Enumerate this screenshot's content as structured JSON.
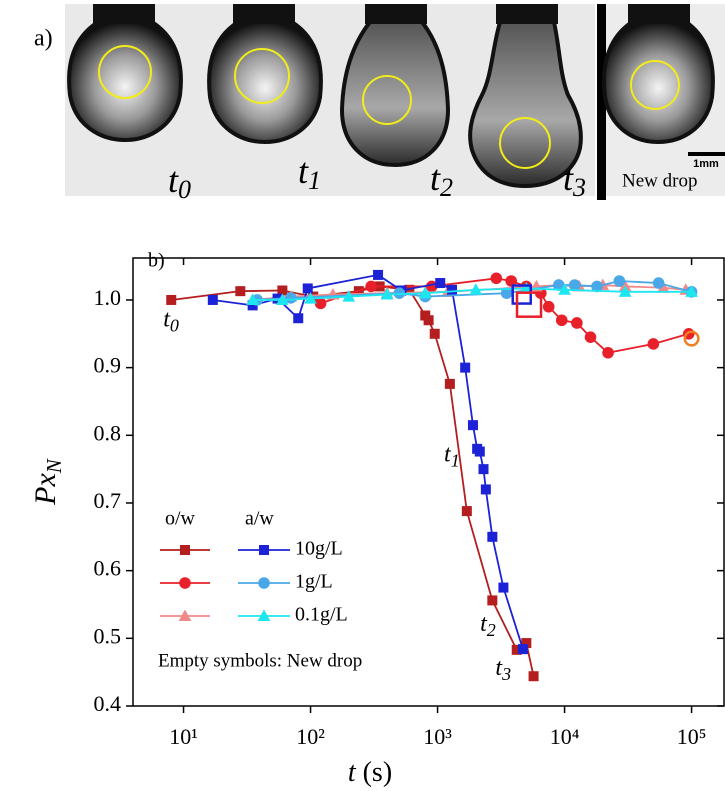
{
  "panel_a": {
    "label": "a)",
    "frames": [
      {
        "base": "t",
        "sub": "0"
      },
      {
        "base": "t",
        "sub": "1"
      },
      {
        "base": "t",
        "sub": "2"
      },
      {
        "base": "t",
        "sub": "3"
      }
    ],
    "scale_bar": "1mm",
    "new_drop": "New drop"
  },
  "chart_data": {
    "type": "line",
    "panel_label": "b)",
    "x_label": {
      "symbol": "t",
      "unit": "(s)"
    },
    "y_label": {
      "base": "Px",
      "sub": "N"
    },
    "log_x": true,
    "xlim": [
      4,
      180000
    ],
    "xticks": [
      {
        "value": 10,
        "label": "10¹"
      },
      {
        "value": 100,
        "label": "10²"
      },
      {
        "value": 1000,
        "label": "10³"
      },
      {
        "value": 10000,
        "label": "10⁴"
      },
      {
        "value": 100000,
        "label": "10⁵"
      }
    ],
    "ylim": [
      0.4,
      1.062
    ],
    "yticks": [
      0.4,
      0.5,
      0.6,
      0.7,
      0.8,
      0.9,
      {
        "value": 1,
        "label": "1.0"
      }
    ],
    "series": [
      {
        "name": "10g/L",
        "medium": "o/w",
        "marker": "square",
        "color": "#b41e1e",
        "x": [
          8,
          28,
          60,
          105,
          240,
          350,
          600,
          800,
          850,
          950,
          1250,
          1700,
          2700,
          4200,
          5000,
          5700
        ],
        "values": [
          1.0,
          1.013,
          1.014,
          1.005,
          1.013,
          1.02,
          1.015,
          0.977,
          0.97,
          0.95,
          0.876,
          0.688,
          0.556,
          0.483,
          0.493,
          0.444
        ]
      },
      {
        "name": "1g/L",
        "medium": "o/w",
        "marker": "circle",
        "color": "#e8202a",
        "x": [
          120,
          300,
          900,
          2900,
          3800,
          5000,
          6500,
          7500,
          9500,
          12500,
          16000,
          22000,
          50000,
          95000
        ],
        "values": [
          0.995,
          1.02,
          1.02,
          1.032,
          1.028,
          1.02,
          1.01,
          0.99,
          0.97,
          0.966,
          0.945,
          0.922,
          0.935,
          0.95
        ]
      },
      {
        "name": "0.1g/L",
        "medium": "o/w",
        "marker": "triangle",
        "color": "#f08a8a",
        "x": [
          35,
          70,
          150,
          400,
          1200,
          6000,
          9000,
          13000,
          20000,
          30000,
          60000,
          90000
        ],
        "values": [
          1.0,
          1.005,
          1.008,
          1.01,
          1.012,
          1.02,
          1.022,
          1.02,
          1.022,
          1.02,
          1.018,
          1.015
        ]
      },
      {
        "name": "10g/L",
        "medium": "a/w",
        "marker": "square",
        "color": "#1c22d6",
        "x": [
          17,
          35,
          55,
          80,
          95,
          340,
          520,
          1050,
          1300,
          1650,
          1900,
          2050,
          2150,
          2300,
          2400,
          2700,
          3300,
          4700
        ],
        "values": [
          1.0,
          0.992,
          1.002,
          0.973,
          1.017,
          1.037,
          1.014,
          1.025,
          1.015,
          0.9,
          0.815,
          0.78,
          0.776,
          0.75,
          0.72,
          0.65,
          0.575,
          0.484
        ]
      },
      {
        "name": "1g/L",
        "medium": "a/w",
        "marker": "circle",
        "color": "#4aa8e8",
        "x": [
          38,
          70,
          500,
          800,
          3500,
          9000,
          12000,
          18000,
          27000,
          55000,
          100000
        ],
        "values": [
          1.0,
          1.003,
          1.01,
          1.005,
          1.01,
          1.022,
          1.022,
          1.02,
          1.028,
          1.025,
          1.012
        ]
      },
      {
        "name": "0.1g/L",
        "medium": "a/w",
        "marker": "triangle",
        "color": "#1ee6f0",
        "x": [
          35,
          60,
          100,
          200,
          400,
          800,
          2000,
          5000,
          10000,
          30000,
          100000
        ],
        "values": [
          1.0,
          1.0,
          1.002,
          1.005,
          1.008,
          1.01,
          1.015,
          1.017,
          1.015,
          1.012,
          1.012
        ]
      }
    ],
    "new_drop_points": [
      {
        "x": 4600,
        "value": 1.008,
        "color": "#1c22d6",
        "marker": "square"
      },
      {
        "x": 5250,
        "value": 0.993,
        "color": "#e8202a",
        "marker": "square"
      },
      {
        "x": 100000,
        "value": 0.943,
        "color": "#f07f20",
        "marker": "circle"
      }
    ],
    "legend_note": "Empty symbols: New drop",
    "annotations": [
      {
        "base": "t",
        "sub": "0",
        "x": 8,
        "value": 0.97
      },
      {
        "base": "t",
        "sub": "1",
        "x": 1300,
        "value": 0.77
      },
      {
        "base": "t",
        "sub": "2",
        "x": 2500,
        "value": 0.52
      },
      {
        "base": "t",
        "sub": "3",
        "x": 3300,
        "value": 0.455
      }
    ]
  }
}
